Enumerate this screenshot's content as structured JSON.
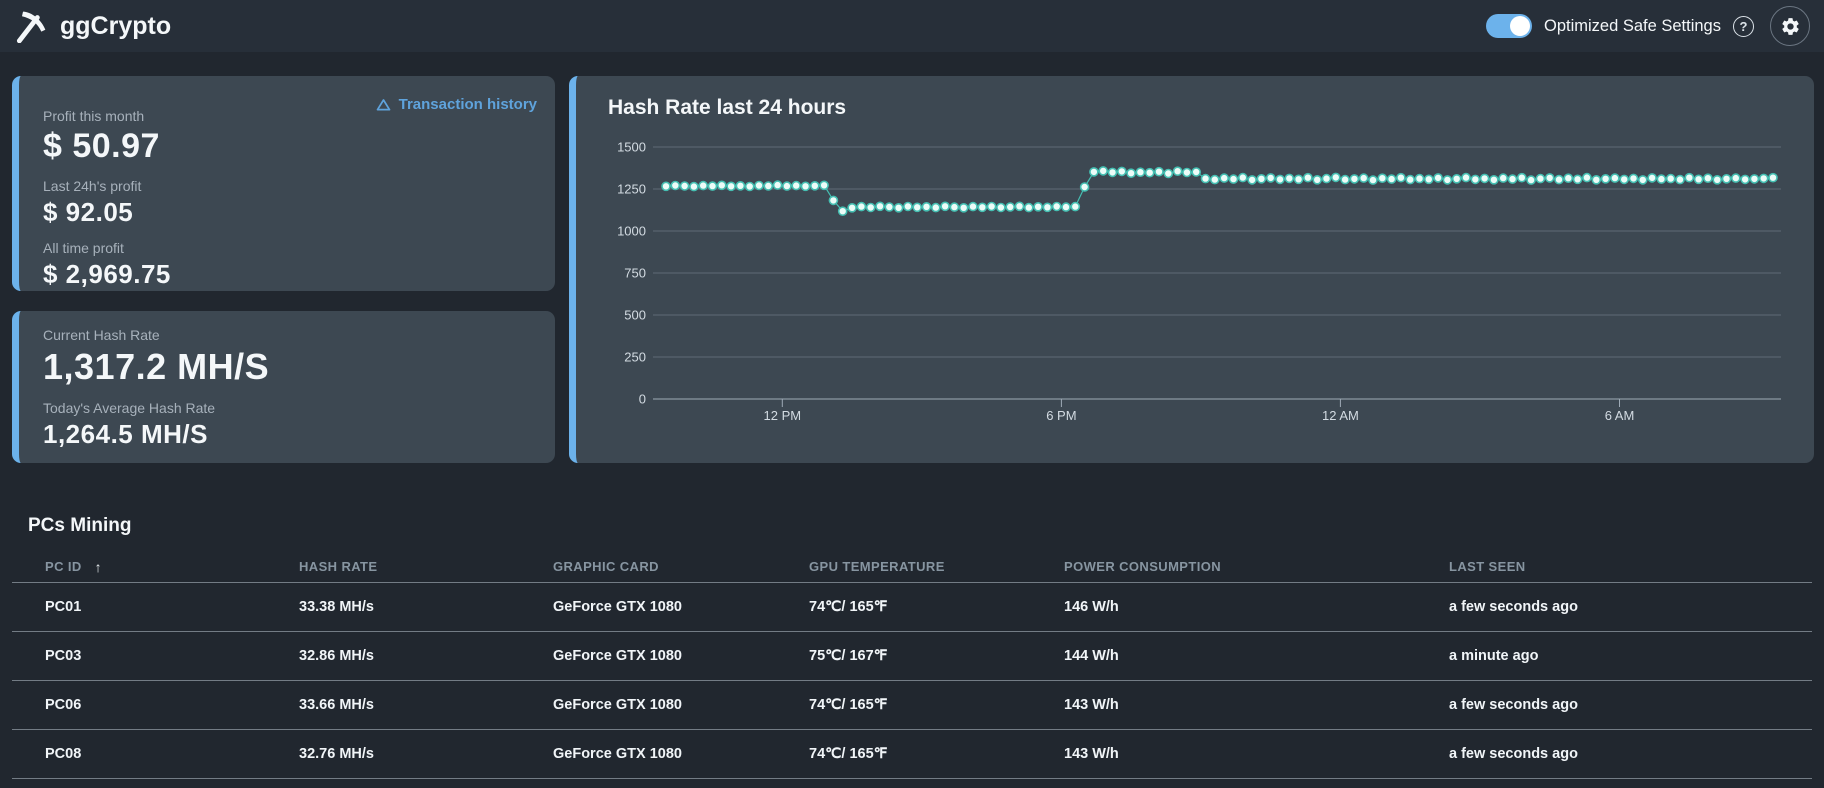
{
  "header": {
    "brand": "ggCrypto",
    "toggle": {
      "label": "Optimized Safe Settings",
      "state": "on"
    },
    "icons": {
      "help": "?",
      "sort_asc": "↑"
    }
  },
  "profit_card": {
    "link_label": "Transaction history",
    "items": [
      {
        "label": "Profit this month",
        "value": "$ 50.97"
      },
      {
        "label": "Last 24h's profit",
        "value": "$ 92.05"
      },
      {
        "label": "All time profit",
        "value": "$ 2,969.75"
      }
    ]
  },
  "hashrate_card": {
    "items": [
      {
        "label": "Current Hash Rate",
        "value": "1,317.2 MH/S"
      },
      {
        "label": "Today's Average Hash Rate",
        "value": "1,264.5 MH/S"
      }
    ]
  },
  "chart_data": {
    "type": "line",
    "title": "Hash Rate last 24 hours",
    "ylabel": "",
    "xlabel": "",
    "unit": "MH/s",
    "ylim": [
      0,
      1500
    ],
    "yticks": [
      0,
      250,
      500,
      750,
      1000,
      1250,
      1500
    ],
    "xticks": [
      {
        "label": "12 PM",
        "index": 12.5
      },
      {
        "label": "6 PM",
        "index": 42.5
      },
      {
        "label": "12 AM",
        "index": 72.5
      },
      {
        "label": "6 AM",
        "index": 102.5
      }
    ],
    "grid": true,
    "legend": false,
    "colors": {
      "line": "#45bfb2",
      "dot_fill": "#edfcf8",
      "grid": "rgba(159,171,183,0.35)",
      "axis": "#9fabb7"
    },
    "values": [
      1266,
      1271,
      1268,
      1264,
      1270,
      1267,
      1272,
      1266,
      1269,
      1265,
      1271,
      1268,
      1273,
      1267,
      1270,
      1266,
      1269,
      1272,
      1182,
      1118,
      1138,
      1145,
      1140,
      1147,
      1143,
      1138,
      1146,
      1141,
      1144,
      1139,
      1147,
      1142,
      1138,
      1145,
      1141,
      1146,
      1140,
      1143,
      1147,
      1139,
      1144,
      1141,
      1146,
      1142,
      1145,
      1262,
      1352,
      1358,
      1349,
      1355,
      1344,
      1350,
      1347,
      1353,
      1342,
      1356,
      1348,
      1351,
      1312,
      1306,
      1315,
      1309,
      1318,
      1304,
      1311,
      1316,
      1307,
      1313,
      1308,
      1317,
      1305,
      1312,
      1319,
      1306,
      1310,
      1315,
      1303,
      1314,
      1309,
      1317,
      1306,
      1312,
      1308,
      1316,
      1304,
      1311,
      1318,
      1307,
      1313,
      1305,
      1315,
      1309,
      1317,
      1303,
      1312,
      1316,
      1306,
      1314,
      1308,
      1318,
      1305,
      1311,
      1315,
      1307,
      1313,
      1304,
      1316,
      1309,
      1312,
      1306,
      1317,
      1308,
      1314,
      1305,
      1311,
      1315,
      1307,
      1310,
      1313,
      1317.2
    ]
  },
  "table": {
    "title": "PCs Mining",
    "sort": {
      "column": "PC ID",
      "direction": "asc"
    },
    "columns": [
      "PC ID",
      "HASH RATE",
      "GRAPHIC CARD",
      "GPU TEMPERATURE",
      "POWER CONSUMPTION",
      "LAST SEEN"
    ],
    "rows": [
      [
        "PC01",
        "33.38 MH/s",
        "GeForce GTX 1080",
        "74℃/ 165℉",
        "146 W/h",
        "a few seconds ago"
      ],
      [
        "PC03",
        "32.86 MH/s",
        "GeForce GTX 1080",
        "75℃/ 167℉",
        "144 W/h",
        "a minute ago"
      ],
      [
        "PC06",
        "33.66 MH/s",
        "GeForce GTX 1080",
        "74℃/ 165℉",
        "143 W/h",
        "a few seconds ago"
      ],
      [
        "PC08",
        "32.76 MH/s",
        "GeForce GTX 1080",
        "74℃/ 165℉",
        "143 W/h",
        "a few seconds ago"
      ]
    ]
  }
}
